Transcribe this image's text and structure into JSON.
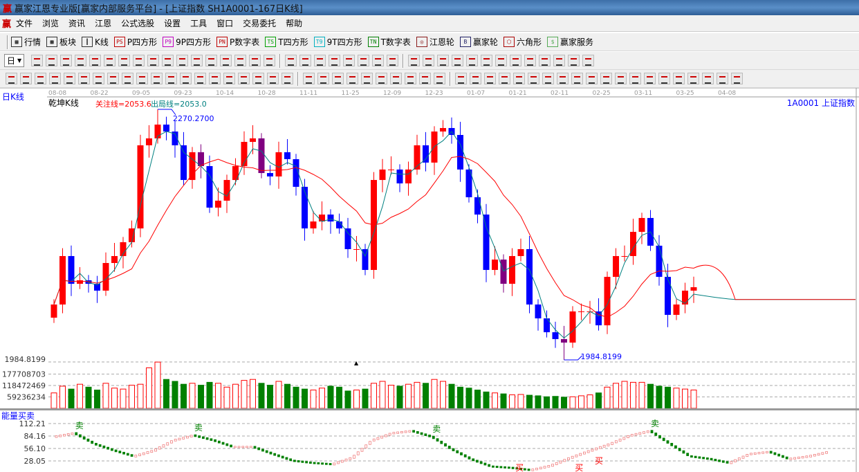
{
  "window": {
    "title": "赢家江恩专业版[赢家内部服务平台] - [上证指数  SH1A0001-167日K线]",
    "logo": "赢"
  },
  "menu": [
    "文件",
    "浏览",
    "资讯",
    "江恩",
    "公式选股",
    "设置",
    "工具",
    "窗口",
    "交易委托",
    "帮助"
  ],
  "toolbar1": [
    {
      "icon": "table-icon",
      "glyph": "▦",
      "label": "行情"
    },
    {
      "icon": "blocks-icon",
      "glyph": "▩",
      "label": "板块"
    },
    {
      "icon": "candlestick-icon",
      "glyph": "┃",
      "label": "K线"
    },
    {
      "icon": "ps-icon",
      "glyph": "PS",
      "label": "P四方形",
      "color": "#c00000"
    },
    {
      "icon": "p9-icon",
      "glyph": "P9",
      "label": "9P四方形",
      "color": "#c000c0"
    },
    {
      "icon": "pn-icon",
      "glyph": "PN",
      "label": "P数字表",
      "color": "#c00000"
    },
    {
      "icon": "ts-icon",
      "glyph": "TS",
      "label": "T四方形",
      "color": "#00a000"
    },
    {
      "icon": "t9-icon",
      "glyph": "T9",
      "label": "9T四方形",
      "color": "#00b0c0"
    },
    {
      "icon": "tn-icon",
      "glyph": "TN",
      "label": "T数字表",
      "color": "#008000"
    },
    {
      "icon": "gann-wheel-icon",
      "glyph": "◎",
      "label": "江恩轮",
      "color": "#8b1a1a"
    },
    {
      "icon": "big-wheel-icon",
      "glyph": "B",
      "label": "赢家轮",
      "color": "#226"
    },
    {
      "icon": "hexagon-icon",
      "glyph": "⬡",
      "label": "六角形",
      "color": "#a00"
    },
    {
      "icon": "dollar-icon",
      "glyph": "$",
      "label": "赢家服务",
      "color": "#5a5"
    }
  ],
  "toolbar2": {
    "period": "日",
    "count": 38
  },
  "toolbar3": {
    "count": 50,
    "percent": "%"
  },
  "chart": {
    "period_label": "日K线",
    "indicator_name": "乾坤K线",
    "focus_line": "关注线=2053.6",
    "exit_line": "出局线=2053.0",
    "symbol": "1A0001 上证指数",
    "high_label": "2270.2700",
    "low_label": "1984.8199",
    "high": 2270.27,
    "low": 1984.8199,
    "dates": [
      "08-08",
      "08-22",
      "09-05",
      "09-23",
      "10-14",
      "10-28",
      "11-11",
      "11-25",
      "12-09",
      "12-23",
      "01-07",
      "01-21",
      "02-11",
      "02-25",
      "03-11",
      "03-25",
      "04-08"
    ],
    "colors": {
      "up": "#ff0000",
      "down": "#0000ff",
      "alt": "#800080",
      "ma_fast": "#008080",
      "ma_slow": "#ff0000"
    },
    "closes": [
      2047.9,
      2103.1,
      2071.5,
      2075.5,
      2071.5,
      2063.7,
      2095.2,
      2103.1,
      2118.9,
      2134.6,
      2229.3,
      2237.2,
      2252.9,
      2245.0,
      2229.3,
      2189.8,
      2221.4,
      2205.6,
      2158.3,
      2166.2,
      2189.8,
      2205.6,
      2233.2,
      2237.2,
      2197.7,
      2193.8,
      2221.4,
      2213.5,
      2182.0,
      2134.6,
      2142.5,
      2150.4,
      2142.5,
      2134.6,
      2111.0,
      2111.0,
      2087.3,
      2189.8,
      2201.7,
      2201.7,
      2185.9,
      2201.7,
      2229.3,
      2209.6,
      2245.0,
      2249.0,
      2241.1,
      2201.7,
      2170.1,
      2150.4,
      2087.3,
      2099.1,
      2071.5,
      2103.1,
      2111.0,
      2047.9,
      2032.1,
      2016.3,
      2008.5,
      2004.5,
      2040.0,
      2040.0,
      2040.0,
      2024.2,
      2079.4,
      2103.1,
      2103.1,
      2130.7,
      2146.5,
      2114.9,
      2079.4,
      2036.1,
      2047.9,
      2063.7,
      2067.6
    ]
  },
  "volume": {
    "axis_price": "1984.8199",
    "ticks": [
      "177708703",
      "118472469",
      "59236234"
    ],
    "tick_values": [
      177708703,
      118472469,
      59236234
    ],
    "values": [
      80,
      115,
      100,
      125,
      110,
      95,
      130,
      105,
      100,
      120,
      125,
      210,
      240,
      150,
      140,
      125,
      130,
      120,
      135,
      130,
      110,
      125,
      145,
      150,
      130,
      120,
      140,
      125,
      110,
      100,
      95,
      105,
      115,
      110,
      90,
      95,
      100,
      130,
      140,
      120,
      115,
      125,
      135,
      130,
      150,
      140,
      125,
      110,
      105,
      95,
      85,
      80,
      75,
      70,
      72,
      68,
      65,
      60,
      62,
      58,
      60,
      65,
      70,
      80,
      110,
      130,
      140,
      135,
      135,
      125,
      115,
      110,
      105,
      100,
      95
    ],
    "scale": 1000000
  },
  "energy": {
    "title": "能量买卖",
    "ticks": [
      "112.21",
      "84.16",
      "56.10",
      "28.05"
    ],
    "tick_values": [
      112.21,
      84.16,
      56.1,
      28.05
    ],
    "values": [
      84,
      92,
      68,
      53,
      40,
      53,
      76,
      87,
      76,
      61,
      61,
      45,
      30,
      25,
      22,
      37,
      76,
      92,
      97,
      84,
      56,
      33,
      17,
      14,
      9,
      19,
      37,
      53,
      68,
      87,
      97,
      68,
      40,
      34,
      25,
      45,
      50,
      34,
      40,
      50
    ],
    "signals": [
      {
        "i": 1,
        "label": "卖",
        "type": "sell"
      },
      {
        "i": 7,
        "label": "卖",
        "type": "sell"
      },
      {
        "i": 19,
        "label": "卖",
        "type": "sell"
      },
      {
        "i": 30,
        "label": "卖",
        "type": "sell"
      },
      {
        "i": 23,
        "label": "买",
        "type": "buy"
      },
      {
        "i": 26,
        "label": "买",
        "type": "buy"
      },
      {
        "i": 27,
        "label": "买",
        "type": "buy"
      }
    ]
  }
}
